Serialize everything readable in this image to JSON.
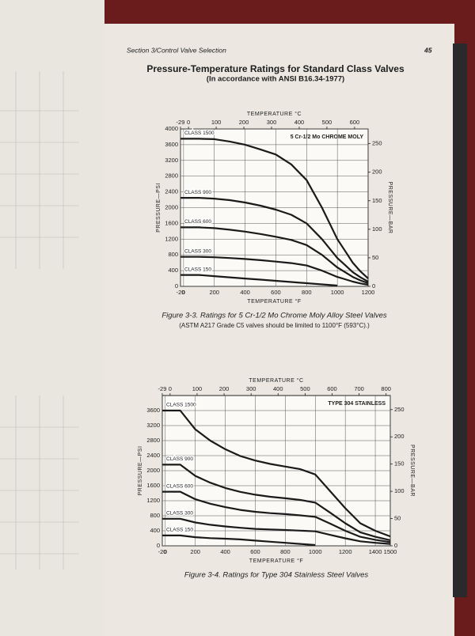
{
  "page": {
    "header": "Section 3/Control Valve Selection",
    "page_number": "45",
    "title": "Pressure-Temperature Ratings for Standard Class Valves",
    "subtitle": "(In accordance with ANSI B16.34-1977)"
  },
  "chart_data": [
    {
      "type": "line",
      "annotation": "5 Cr-1/2 Mo CHROME MOLY",
      "caption": "Figure 3-3. Ratings for 5 Cr-1/2 Mo Chrome Moly Alloy Steel Valves",
      "note": "(ASTM A217 Grade C5 valves should be limited to 1100°F (593°C).)",
      "x_label": "TEMPERATURE °F",
      "x2_label": "TEMPERATURE °C",
      "y_label": "PRESSURE—PSI",
      "y2_label": "PRESSURE—BAR",
      "x": [
        -20,
        100,
        200,
        300,
        400,
        500,
        600,
        700,
        800,
        900,
        1000,
        1050,
        1100,
        1150,
        1200
      ],
      "xlim": [
        -20,
        1200
      ],
      "xticks": [
        -20,
        0,
        200,
        400,
        600,
        800,
        1000,
        1200
      ],
      "x2lim": [
        -28.9,
        648.9
      ],
      "x2ticks": [
        -29,
        0,
        100,
        200,
        300,
        400,
        500,
        600
      ],
      "ylim": [
        0,
        4000
      ],
      "yticks": [
        0,
        400,
        800,
        1200,
        1600,
        2000,
        2400,
        2800,
        3200,
        3600,
        4000
      ],
      "y2lim": [
        0,
        275.8
      ],
      "y2ticks": [
        0,
        50,
        100,
        150,
        200,
        250
      ],
      "grid": true,
      "series": [
        {
          "name": "CLASS 1500",
          "color": "#1a1a1a",
          "values": [
            3750,
            3750,
            3740,
            3680,
            3600,
            3480,
            3350,
            3100,
            2700,
            2000,
            1200,
            900,
            600,
            380,
            200
          ]
        },
        {
          "name": "CLASS 900",
          "color": "#1a1a1a",
          "values": [
            2250,
            2250,
            2230,
            2190,
            2130,
            2050,
            1950,
            1820,
            1600,
            1200,
            720,
            540,
            360,
            230,
            120
          ]
        },
        {
          "name": "CLASS 600",
          "color": "#1a1a1a",
          "values": [
            1500,
            1500,
            1480,
            1440,
            1390,
            1330,
            1260,
            1180,
            1050,
            800,
            480,
            360,
            240,
            150,
            80
          ]
        },
        {
          "name": "CLASS 300",
          "color": "#1a1a1a",
          "values": [
            750,
            750,
            740,
            720,
            695,
            665,
            630,
            590,
            530,
            400,
            240,
            180,
            120,
            75,
            40
          ]
        },
        {
          "name": "CLASS 150",
          "color": "#1a1a1a",
          "values": [
            290,
            290,
            260,
            230,
            200,
            170,
            140,
            110,
            80,
            50,
            20,
            null,
            null,
            null,
            null
          ]
        }
      ]
    },
    {
      "type": "line",
      "annotation": "TYPE 304 STAINLESS",
      "caption": "Figure 3-4. Ratings for Type 304 Stainless Steel Valves",
      "x_label": "TEMPERATURE °F",
      "x2_label": "TEMPERATURE °C",
      "y_label": "PRESSURE—PSI",
      "y2_label": "PRESSURE—BAR",
      "x": [
        -20,
        100,
        200,
        300,
        400,
        500,
        600,
        700,
        800,
        900,
        1000,
        1100,
        1200,
        1300,
        1400,
        1500
      ],
      "xlim": [
        -20,
        1500
      ],
      "xticks": [
        -20,
        0,
        200,
        400,
        600,
        800,
        1000,
        1200,
        1400,
        1500
      ],
      "x2lim": [
        -28.9,
        815.6
      ],
      "x2ticks": [
        -29,
        0,
        100,
        200,
        300,
        400,
        500,
        600,
        700,
        800
      ],
      "ylim": [
        0,
        4000
      ],
      "yticks": [
        0,
        400,
        800,
        1200,
        1600,
        2000,
        2400,
        2800,
        3200,
        3600
      ],
      "y2lim": [
        0,
        275.8
      ],
      "y2ticks": [
        0,
        50,
        100,
        150,
        200,
        250
      ],
      "grid": true,
      "series": [
        {
          "name": "CLASS 1500",
          "color": "#1a1a1a",
          "values": [
            3600,
            3600,
            3100,
            2800,
            2570,
            2390,
            2270,
            2180,
            2110,
            2040,
            1900,
            1450,
            1000,
            600,
            400,
            250
          ]
        },
        {
          "name": "CLASS 900",
          "color": "#1a1a1a",
          "values": [
            2160,
            2160,
            1860,
            1680,
            1540,
            1435,
            1360,
            1305,
            1265,
            1220,
            1150,
            880,
            600,
            360,
            240,
            150
          ]
        },
        {
          "name": "CLASS 600",
          "color": "#1a1a1a",
          "values": [
            1440,
            1440,
            1240,
            1120,
            1030,
            955,
            905,
            870,
            845,
            810,
            770,
            590,
            400,
            240,
            160,
            100
          ]
        },
        {
          "name": "CLASS 300",
          "color": "#1a1a1a",
          "values": [
            720,
            720,
            620,
            560,
            515,
            480,
            450,
            435,
            420,
            405,
            385,
            290,
            200,
            120,
            80,
            50
          ]
        },
        {
          "name": "CLASS 150",
          "color": "#1a1a1a",
          "values": [
            275,
            275,
            230,
            205,
            190,
            170,
            140,
            110,
            80,
            50,
            20,
            null,
            null,
            null,
            null,
            null
          ]
        }
      ]
    }
  ]
}
